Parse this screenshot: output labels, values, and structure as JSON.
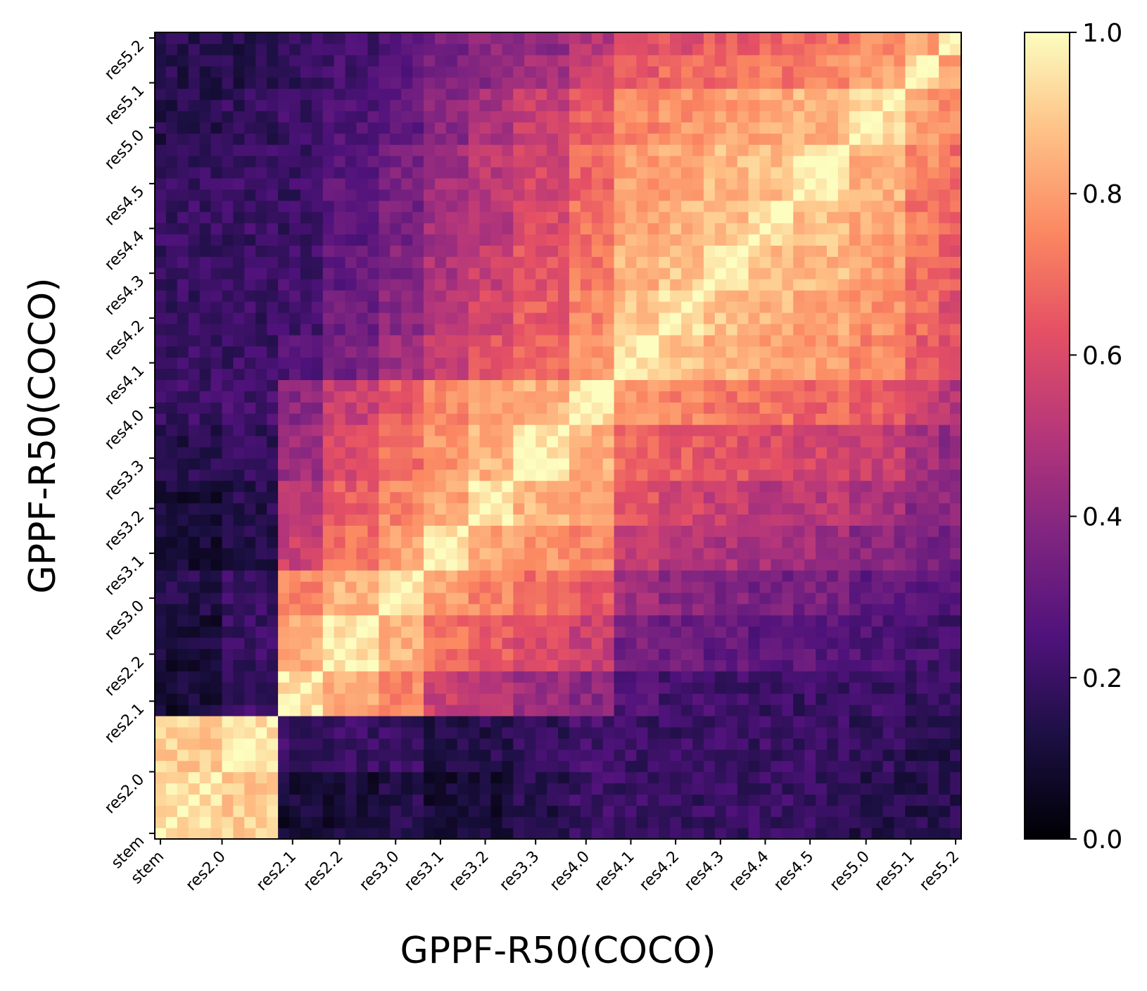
{
  "chart_data": {
    "type": "heatmap",
    "title": "",
    "xlabel": "GPPF-R50(COCO)",
    "ylabel": "GPPF-R50(COCO)",
    "colormap": "magma",
    "vmin": 0.0,
    "vmax": 1.0,
    "colorbar_ticks": [
      "0.0",
      "0.2",
      "0.4",
      "0.6",
      "0.8",
      "1.0"
    ],
    "grid": false,
    "n_cells": 72,
    "tick_labels": [
      "stem",
      "res2.0",
      "res2.1",
      "res2.2",
      "res3.0",
      "res3.1",
      "res3.2",
      "res3.3",
      "res4.0",
      "res4.1",
      "res4.2",
      "res4.3",
      "res4.4",
      "res4.5",
      "res5.0",
      "res5.1",
      "res5.2"
    ],
    "tick_positions": [
      0.5,
      6,
      12.3,
      16.5,
      21.5,
      25.5,
      29.5,
      34,
      38.5,
      42.5,
      46.5,
      50.5,
      54.5,
      58.5,
      63.5,
      67.5,
      71.5
    ],
    "block_labels": [
      "stem",
      "res2.0",
      "res2.1",
      "res2.2",
      "res3.0",
      "res3.1",
      "res3.2",
      "res3.3",
      "res4.0",
      "res4.1",
      "res4.2",
      "res4.3",
      "res4.4",
      "res4.5",
      "res5.0",
      "res5.1",
      "res5.2"
    ],
    "block_bounds": [
      0,
      6,
      11,
      15,
      20,
      24,
      28,
      32,
      37,
      41,
      45,
      49,
      53,
      57,
      62,
      67,
      70,
      72
    ],
    "block_similarity_estimate": [
      [
        0.95,
        0.9,
        0.1,
        0.1,
        0.15,
        0.1,
        0.1,
        0.15,
        0.2,
        0.2,
        0.2,
        0.2,
        0.2,
        0.2,
        0.15,
        0.15,
        0.15
      ],
      [
        0.9,
        0.95,
        0.2,
        0.2,
        0.2,
        0.15,
        0.15,
        0.18,
        0.22,
        0.2,
        0.2,
        0.2,
        0.2,
        0.2,
        0.18,
        0.15,
        0.15
      ],
      [
        0.1,
        0.2,
        0.95,
        0.82,
        0.75,
        0.55,
        0.5,
        0.45,
        0.4,
        0.25,
        0.22,
        0.22,
        0.2,
        0.2,
        0.2,
        0.18,
        0.18
      ],
      [
        0.1,
        0.2,
        0.82,
        0.95,
        0.85,
        0.7,
        0.65,
        0.6,
        0.55,
        0.35,
        0.32,
        0.3,
        0.28,
        0.28,
        0.25,
        0.22,
        0.22
      ],
      [
        0.15,
        0.2,
        0.75,
        0.85,
        0.95,
        0.8,
        0.75,
        0.7,
        0.65,
        0.45,
        0.4,
        0.38,
        0.35,
        0.35,
        0.3,
        0.28,
        0.28
      ],
      [
        0.1,
        0.15,
        0.55,
        0.7,
        0.8,
        0.95,
        0.82,
        0.78,
        0.75,
        0.55,
        0.5,
        0.48,
        0.45,
        0.45,
        0.4,
        0.35,
        0.35
      ],
      [
        0.1,
        0.15,
        0.5,
        0.65,
        0.75,
        0.82,
        0.95,
        0.85,
        0.8,
        0.62,
        0.58,
        0.55,
        0.52,
        0.52,
        0.48,
        0.4,
        0.4
      ],
      [
        0.15,
        0.18,
        0.45,
        0.6,
        0.7,
        0.78,
        0.85,
        0.95,
        0.85,
        0.68,
        0.65,
        0.62,
        0.6,
        0.58,
        0.55,
        0.45,
        0.42
      ],
      [
        0.2,
        0.22,
        0.4,
        0.55,
        0.65,
        0.75,
        0.8,
        0.85,
        0.95,
        0.78,
        0.75,
        0.72,
        0.7,
        0.68,
        0.65,
        0.55,
        0.5
      ],
      [
        0.2,
        0.2,
        0.25,
        0.35,
        0.45,
        0.55,
        0.62,
        0.68,
        0.78,
        0.95,
        0.88,
        0.85,
        0.82,
        0.8,
        0.75,
        0.65,
        0.6
      ],
      [
        0.2,
        0.2,
        0.22,
        0.32,
        0.4,
        0.5,
        0.58,
        0.65,
        0.75,
        0.88,
        0.95,
        0.88,
        0.85,
        0.82,
        0.78,
        0.68,
        0.62
      ],
      [
        0.2,
        0.2,
        0.22,
        0.3,
        0.38,
        0.48,
        0.55,
        0.62,
        0.72,
        0.85,
        0.88,
        0.95,
        0.88,
        0.86,
        0.8,
        0.7,
        0.65
      ],
      [
        0.2,
        0.2,
        0.2,
        0.28,
        0.35,
        0.45,
        0.52,
        0.6,
        0.7,
        0.82,
        0.85,
        0.88,
        0.95,
        0.88,
        0.82,
        0.72,
        0.68
      ],
      [
        0.2,
        0.2,
        0.2,
        0.28,
        0.35,
        0.45,
        0.52,
        0.58,
        0.68,
        0.8,
        0.82,
        0.86,
        0.88,
        0.95,
        0.85,
        0.75,
        0.7
      ],
      [
        0.15,
        0.18,
        0.2,
        0.25,
        0.3,
        0.4,
        0.48,
        0.55,
        0.65,
        0.75,
        0.78,
        0.8,
        0.82,
        0.85,
        0.95,
        0.8,
        0.75
      ],
      [
        0.15,
        0.15,
        0.18,
        0.22,
        0.28,
        0.35,
        0.4,
        0.45,
        0.55,
        0.65,
        0.68,
        0.7,
        0.72,
        0.75,
        0.8,
        0.95,
        0.82
      ],
      [
        0.15,
        0.15,
        0.18,
        0.22,
        0.28,
        0.35,
        0.4,
        0.42,
        0.5,
        0.6,
        0.62,
        0.65,
        0.68,
        0.7,
        0.75,
        0.82,
        0.95
      ]
    ]
  }
}
